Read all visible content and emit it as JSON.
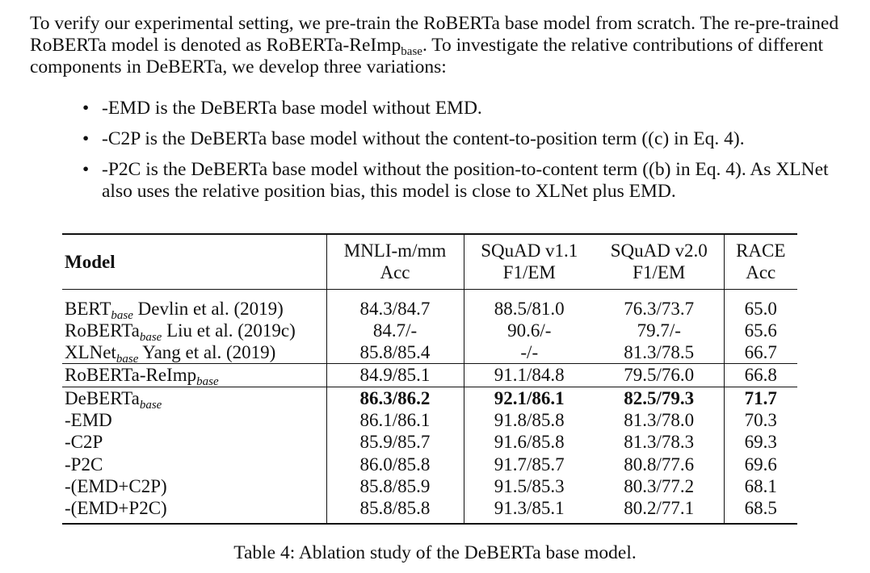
{
  "intro": {
    "s1": "To verify our experimental setting, we pre-train the RoBERTa base model from scratch. The re-pre-trained RoBERTa model is denoted as ",
    "s1_term": "RoBERTa-ReImp",
    "s1_sub": "base",
    "s2": ". To investigate the relative contributions of different components in DeBERTa, we develop three variations:"
  },
  "bullets": [
    "-EMD is the DeBERTa base model without EMD.",
    "-C2P is the DeBERTa base model without the content-to-position term ((c) in Eq. 4).",
    "-P2C is the DeBERTa base model without the position-to-content term ((b) in Eq. 4). As XLNet also uses the relative position bias, this model is close to XLNet plus EMD."
  ],
  "bullet_glyph": "•",
  "table": {
    "model_header": "Model",
    "columns": [
      {
        "top": "MNLI-m/mm",
        "bottom": "Acc"
      },
      {
        "top": "SQuAD v1.1",
        "bottom": "F1/EM"
      },
      {
        "top": "SQuAD v2.0",
        "bottom": "F1/EM"
      },
      {
        "top": "RACE",
        "bottom": "Acc"
      }
    ],
    "rows": [
      {
        "name": "BERT",
        "sub": "base",
        "cite": " Devlin et al. (2019)",
        "vals": [
          "84.3/84.7",
          "88.5/81.0",
          "76.3/73.7",
          "65.0"
        ]
      },
      {
        "name": "RoBERTa",
        "sub": "base",
        "cite": " Liu et al. (2019c)",
        "vals": [
          "84.7/-",
          "90.6/-",
          "79.7/-",
          "65.6"
        ]
      },
      {
        "name": "XLNet",
        "sub": "base",
        "cite": " Yang et al. (2019)",
        "vals": [
          "85.8/85.4",
          "-/-",
          "81.3/78.5",
          "66.7"
        ]
      },
      {
        "name": "RoBERTa-ReImp",
        "sub": "base",
        "cite": "",
        "vals": [
          "84.9/85.1",
          "91.1/84.8",
          "79.5/76.0",
          "66.8"
        ]
      },
      {
        "name": "DeBERTa",
        "sub": "base",
        "cite": "",
        "vals": [
          "86.3/86.2",
          "92.1/86.1",
          "82.5/79.3",
          "71.7"
        ]
      },
      {
        "name": "-EMD",
        "sub": "",
        "cite": "",
        "vals": [
          "86.1/86.1",
          "91.8/85.8",
          "81.3/78.0",
          "70.3"
        ]
      },
      {
        "name": "-C2P",
        "sub": "",
        "cite": "",
        "vals": [
          "85.9/85.7",
          "91.6/85.8",
          "81.3/78.3",
          "69.3"
        ]
      },
      {
        "name": "-P2C",
        "sub": "",
        "cite": "",
        "vals": [
          "86.0/85.8",
          "91.7/85.7",
          "80.8/77.6",
          "69.6"
        ]
      },
      {
        "name": "-(EMD+C2P)",
        "sub": "",
        "cite": "",
        "vals": [
          "85.8/85.9",
          "91.5/85.3",
          "80.3/77.2",
          "68.1"
        ]
      },
      {
        "name": "-(EMD+P2C)",
        "sub": "",
        "cite": "",
        "vals": [
          "85.8/85.8",
          "91.3/85.1",
          "80.2/77.1",
          "68.5"
        ]
      }
    ]
  },
  "caption": "Table 4: Ablation study of the DeBERTa base model."
}
